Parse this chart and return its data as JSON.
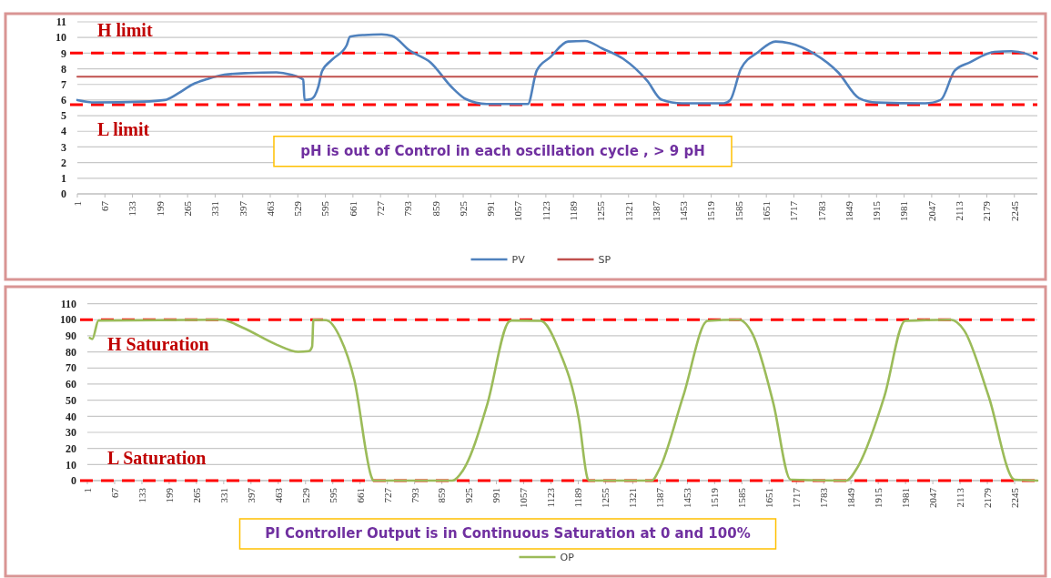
{
  "chart_data": [
    {
      "type": "line",
      "xlim": [
        1,
        2300
      ],
      "xticks": [
        1,
        67,
        133,
        199,
        265,
        331,
        397,
        463,
        529,
        595,
        661,
        727,
        793,
        859,
        925,
        991,
        1057,
        1123,
        1189,
        1255,
        1321,
        1387,
        1453,
        1519,
        1585,
        1651,
        1717,
        1783,
        1849,
        1915,
        1981,
        2047,
        2113,
        2179,
        2245
      ],
      "ylim": [
        0,
        11
      ],
      "yticks": [
        0,
        1,
        2,
        3,
        4,
        5,
        6,
        7,
        8,
        9,
        10,
        11
      ],
      "grid": "y",
      "legend": "bottom",
      "line_style": "solid",
      "marker": "none",
      "series": [
        {
          "name": "PV",
          "color": "#4f81bd",
          "x": [
            1,
            43,
            160,
            210,
            244,
            277,
            311,
            353,
            412,
            478,
            512,
            542,
            545,
            562,
            578,
            587,
            612,
            646,
            654,
            688,
            730,
            755,
            797,
            847,
            897,
            931,
            981,
            1080,
            1101,
            1134,
            1176,
            1217,
            1258,
            1308,
            1366,
            1400,
            1449,
            1549,
            1565,
            1590,
            1632,
            1673,
            1707,
            1765,
            1823,
            1873,
            1915,
            2031,
            2069,
            2102,
            2139,
            2197,
            2238,
            2272,
            2300
          ],
          "values": [
            6.0,
            5.85,
            5.9,
            6.0,
            6.45,
            7.0,
            7.33,
            7.62,
            7.73,
            7.77,
            7.62,
            7.3,
            6.0,
            6.07,
            6.84,
            7.84,
            8.6,
            9.5,
            10.05,
            10.16,
            10.2,
            10.1,
            9.16,
            8.4,
            6.84,
            6.07,
            5.75,
            5.75,
            7.88,
            8.75,
            9.74,
            9.78,
            9.3,
            8.64,
            7.22,
            6.02,
            5.79,
            5.79,
            6.02,
            7.99,
            9.08,
            9.74,
            9.63,
            8.97,
            7.77,
            6.12,
            5.84,
            5.79,
            6.02,
            7.88,
            8.42,
            9.08,
            9.12,
            8.97,
            8.64
          ]
        },
        {
          "name": "SP",
          "color": "#c0504d",
          "x": [
            1,
            2300
          ],
          "values": [
            7.5,
            7.5
          ]
        }
      ],
      "ref_lines": [
        {
          "axis": "y",
          "value": 9,
          "label": "H limit",
          "color": "#ff0000",
          "line_style": "dashed"
        },
        {
          "axis": "y",
          "value": 5.7,
          "label": "L limit",
          "color": "#ff0000",
          "line_style": "dashed"
        }
      ],
      "annotations": [
        "pH is out of Control in each oscillation cycle , > 9 pH"
      ]
    },
    {
      "type": "line",
      "xlim": [
        1,
        2300
      ],
      "xticks": [
        1,
        67,
        133,
        199,
        265,
        331,
        397,
        463,
        529,
        595,
        661,
        727,
        793,
        859,
        925,
        991,
        1057,
        1123,
        1189,
        1255,
        1321,
        1387,
        1453,
        1519,
        1585,
        1651,
        1717,
        1783,
        1849,
        1915,
        1981,
        2047,
        2113,
        2179,
        2245
      ],
      "ylim": [
        0,
        110
      ],
      "yticks": [
        0,
        10,
        20,
        30,
        40,
        50,
        60,
        70,
        80,
        90,
        100,
        110
      ],
      "grid": "y",
      "legend": "bottom",
      "line_style": "solid",
      "marker": "none",
      "series": [
        {
          "name": "OP",
          "color": "#9bbb59",
          "x": [
            7,
            13,
            28,
            325,
            376,
            460,
            511,
            537,
            545,
            548,
            579,
            613,
            647,
            689,
            693,
            884,
            910,
            969,
            1020,
            1028,
            1098,
            1140,
            1191,
            1212,
            1216,
            1367,
            1384,
            1443,
            1502,
            1577,
            1611,
            1661,
            1703,
            1838,
            1863,
            1930,
            1980,
            2090,
            2123,
            2182,
            2245,
            2300
          ],
          "values": [
            88.7,
            88,
            99.5,
            100,
            95.2,
            84.4,
            80.1,
            80.5,
            83.3,
            100,
            99.7,
            88.7,
            62.7,
            2,
            0,
            0,
            6.4,
            47.6,
            98.5,
            99.5,
            99.3,
            82.6,
            37.5,
            1,
            0,
            0,
            6.4,
            52.5,
            99.3,
            100,
            91,
            48.2,
            0.6,
            0,
            7.5,
            52.5,
            99.3,
            100,
            93.3,
            52.5,
            0.6,
            0
          ]
        }
      ],
      "ref_lines": [
        {
          "axis": "y",
          "value": 100,
          "label": "H Saturation",
          "color": "#ff0000",
          "line_style": "dashed"
        },
        {
          "axis": "y",
          "value": 0,
          "label": "L Saturation",
          "color": "#ff0000",
          "line_style": "dashed"
        }
      ],
      "annotations": [
        "PI Controller  Output  is in Continuous  Saturation at 0 and 100%"
      ]
    }
  ]
}
